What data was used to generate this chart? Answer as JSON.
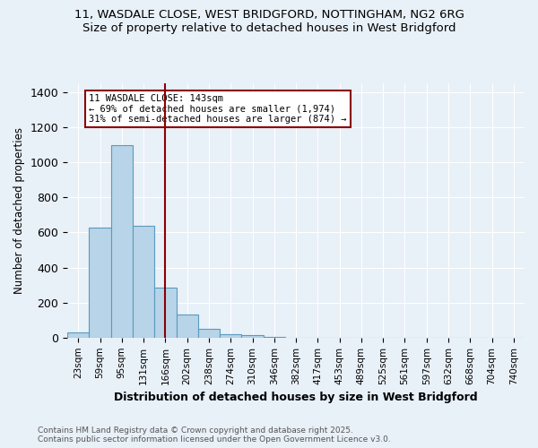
{
  "title_line1": "11, WASDALE CLOSE, WEST BRIDGFORD, NOTTINGHAM, NG2 6RG",
  "title_line2": "Size of property relative to detached houses in West Bridgford",
  "xlabel": "Distribution of detached houses by size in West Bridgford",
  "ylabel": "Number of detached properties",
  "footer_line1": "Contains HM Land Registry data © Crown copyright and database right 2025.",
  "footer_line2": "Contains public sector information licensed under the Open Government Licence v3.0.",
  "annotation_text": "11 WASDALE CLOSE: 143sqm\n← 69% of detached houses are smaller (1,974)\n31% of semi-detached houses are larger (874) →",
  "property_size": 143,
  "marker_bin_index": 4,
  "bin_labels": [
    "23sqm",
    "59sqm",
    "95sqm",
    "131sqm",
    "166sqm",
    "202sqm",
    "238sqm",
    "274sqm",
    "310sqm",
    "346sqm",
    "382sqm",
    "417sqm",
    "453sqm",
    "489sqm",
    "525sqm",
    "561sqm",
    "597sqm",
    "632sqm",
    "668sqm",
    "704sqm",
    "740sqm"
  ],
  "values": [
    30,
    625,
    1100,
    640,
    285,
    130,
    50,
    20,
    15,
    5,
    0,
    0,
    0,
    0,
    0,
    0,
    0,
    0,
    0,
    0,
    0
  ],
  "bar_color": "#b8d4e8",
  "bar_edge_color": "#5a9abf",
  "marker_color": "#8b0000",
  "annotation_box_color": "#ffffff",
  "annotation_box_edge": "#8b0000",
  "background_color": "#e8f0f8",
  "grid_color": "#ffffff",
  "ylim": [
    0,
    1450
  ],
  "yticks": [
    0,
    200,
    400,
    600,
    800,
    1000,
    1200,
    1400
  ]
}
